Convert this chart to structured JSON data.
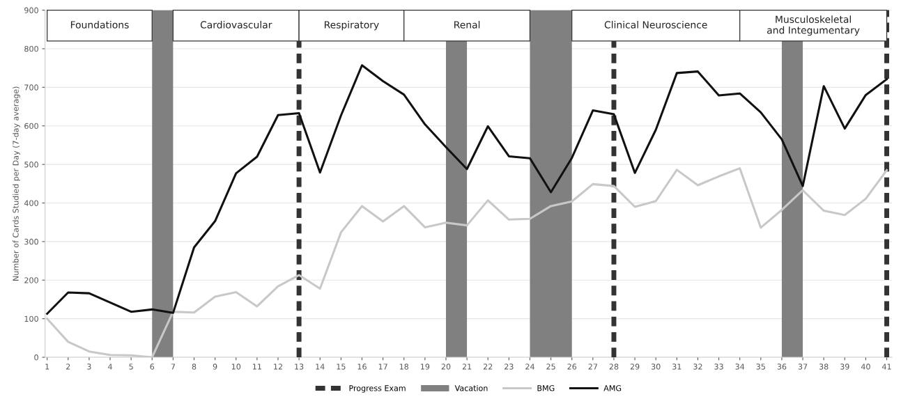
{
  "chart_data": {
    "type": "line",
    "ylabel": "Number of Cards Studied per Day (7-day average)",
    "x": [
      1,
      2,
      3,
      4,
      5,
      6,
      7,
      8,
      9,
      10,
      11,
      12,
      13,
      14,
      15,
      16,
      17,
      18,
      19,
      20,
      21,
      22,
      23,
      24,
      25,
      26,
      27,
      28,
      29,
      30,
      31,
      32,
      33,
      34,
      35,
      36,
      37,
      38,
      39,
      40,
      41
    ],
    "xlim": [
      0.9,
      41.25
    ],
    "xticks": [
      1,
      2,
      3,
      4,
      5,
      6,
      7,
      8,
      9,
      10,
      11,
      12,
      13,
      14,
      15,
      16,
      17,
      18,
      19,
      20,
      21,
      22,
      23,
      24,
      25,
      26,
      27,
      28,
      29,
      30,
      31,
      32,
      33,
      34,
      35,
      36,
      37,
      38,
      39,
      40,
      41
    ],
    "ylim": [
      0,
      900
    ],
    "yticks": [
      0,
      100,
      200,
      300,
      400,
      500,
      600,
      700,
      800,
      900
    ],
    "grid": "y",
    "legend": "bottom",
    "series": [
      {
        "name": "BMG",
        "color": "#c8c8c8",
        "values": [
          100,
          40,
          15,
          6,
          5,
          0,
          118,
          116,
          157,
          169,
          132,
          184,
          213,
          178,
          324,
          392,
          352,
          392,
          337,
          349,
          342,
          407,
          357,
          359,
          392,
          404,
          449,
          444,
          390,
          405,
          486,
          446,
          469,
          490,
          336,
          382,
          433,
          380,
          369,
          411,
          485
        ]
      },
      {
        "name": "AMG",
        "color": "#111111",
        "values": [
          113,
          168,
          166,
          142,
          118,
          124,
          115,
          285,
          353,
          477,
          520,
          628,
          633,
          479,
          627,
          757,
          716,
          681,
          604,
          545,
          488,
          599,
          521,
          516,
          428,
          517,
          640,
          630,
          478,
          590,
          737,
          741,
          679,
          684,
          635,
          565,
          444,
          703,
          593,
          680,
          721
        ]
      }
    ],
    "bands": [
      {
        "axis": "x",
        "from": 6,
        "to": 7,
        "label": "Vacation",
        "color": "#808080"
      },
      {
        "axis": "x",
        "from": 20,
        "to": 21,
        "color": "#808080"
      },
      {
        "axis": "x",
        "from": 24,
        "to": 26,
        "color": "#808080"
      },
      {
        "axis": "x",
        "from": 36,
        "to": 37,
        "color": "#808080"
      },
      {
        "axis": "x",
        "from": 1,
        "to": 6,
        "label": "Foundations"
      },
      {
        "axis": "x",
        "from": 7,
        "to": 13,
        "label": "Cardiovascular"
      },
      {
        "axis": "x",
        "from": 13,
        "to": 18,
        "label": "Respiratory"
      },
      {
        "axis": "x",
        "from": 18,
        "to": 24,
        "label": "Renal"
      },
      {
        "axis": "x",
        "from": 26,
        "to": 34,
        "label": "Clinical Neuroscience"
      },
      {
        "axis": "x",
        "from": 34,
        "to": 41,
        "label": "Musculoskeletal\nand Integumentary"
      }
    ],
    "ref_lines": [
      {
        "axis": "x",
        "value": 13,
        "label": "Progress Exam",
        "color": "#333333",
        "line_style": "dashed"
      },
      {
        "axis": "x",
        "value": 28,
        "color": "#333333",
        "line_style": "dashed"
      },
      {
        "axis": "x",
        "value": 41,
        "color": "#333333",
        "line_style": "dashed"
      }
    ]
  }
}
